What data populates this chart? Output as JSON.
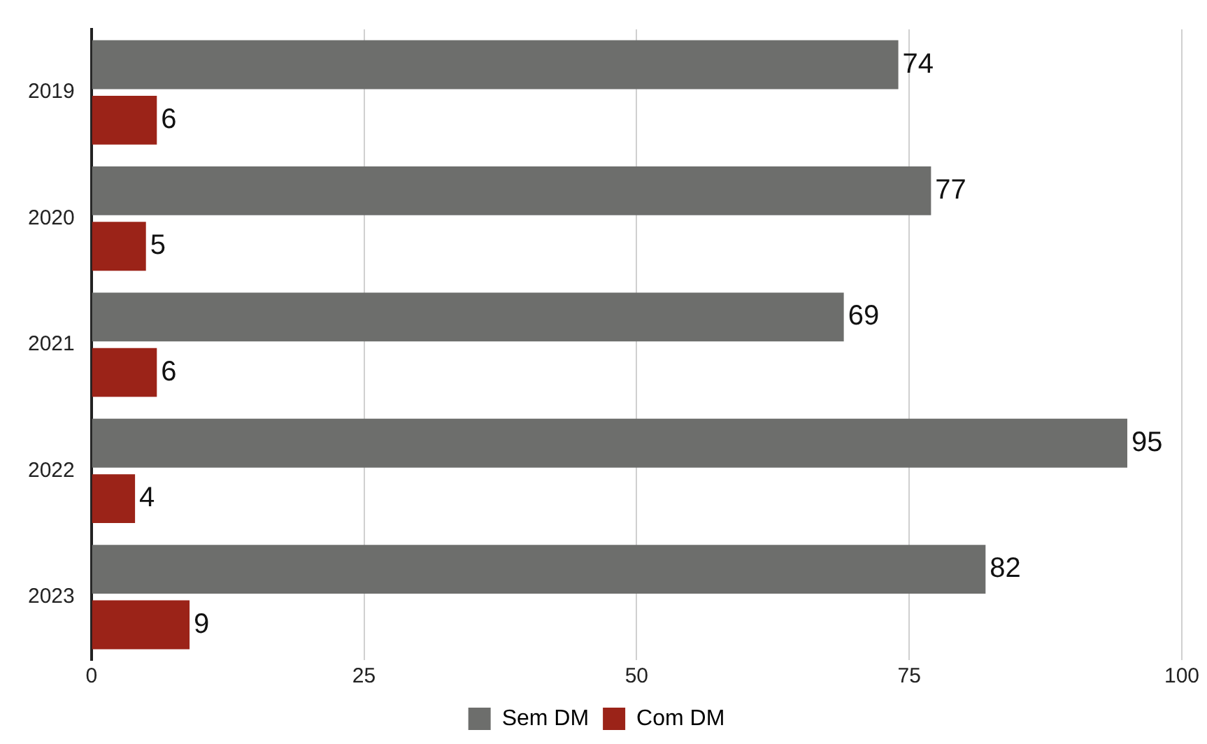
{
  "chart_data": {
    "type": "bar",
    "orientation": "horizontal",
    "categories": [
      "2019",
      "2020",
      "2021",
      "2022",
      "2023"
    ],
    "series": [
      {
        "name": "Sem DM",
        "color": "#6d6e6c",
        "values": [
          74,
          77,
          69,
          95,
          82
        ]
      },
      {
        "name": "Com DM",
        "color": "#9b2318",
        "values": [
          6,
          5,
          6,
          4,
          9
        ]
      }
    ],
    "xlim": [
      0,
      100
    ],
    "xticks": [
      0,
      25,
      50,
      75,
      100
    ],
    "grid": "x",
    "legend": "bottom",
    "data_labels": true
  }
}
